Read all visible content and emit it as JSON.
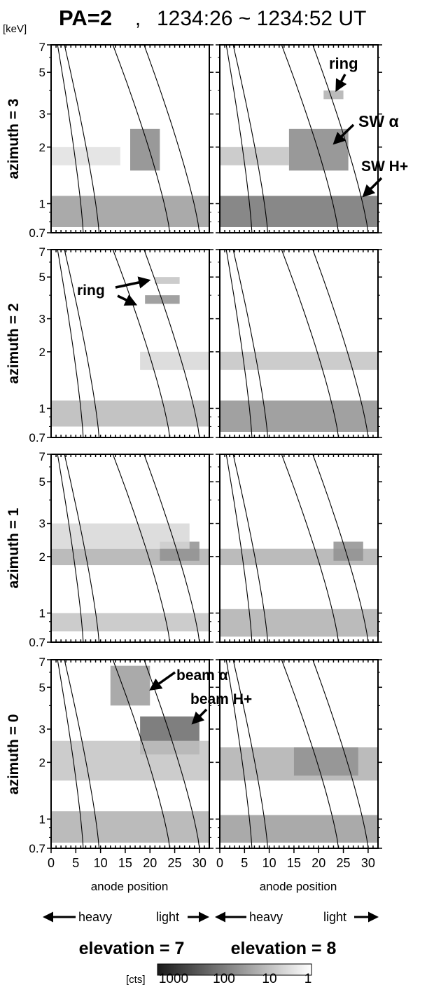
{
  "title": {
    "pa": "PA=2",
    "sep": ",",
    "time": "1234:26 ~ 1234:52 UT"
  },
  "y_unit": "[keV]",
  "y_ticks": [
    "7",
    "5",
    "3",
    "2",
    "1",
    "0.7"
  ],
  "x_ticks": [
    "0",
    "5",
    "10",
    "15",
    "20",
    "25",
    "30"
  ],
  "x_label": "anode position",
  "heavy_label": "heavy",
  "light_label": "light",
  "columns": [
    {
      "elevation_label": "elevation = 7"
    },
    {
      "elevation_label": "elevation = 8"
    }
  ],
  "rows": [
    {
      "azimuth_label": "azimuth = 3"
    },
    {
      "azimuth_label": "azimuth = 2"
    },
    {
      "azimuth_label": "azimuth = 1"
    },
    {
      "azimuth_label": "azimuth = 0"
    }
  ],
  "annotations": {
    "ring": "ring",
    "ring2": "ring",
    "sw_alpha": "SW α",
    "sw_h": "SW H+",
    "beam_alpha": "beam α",
    "beam_h": "beam H+"
  },
  "colorbar": {
    "unit": "[cts]",
    "ticks": [
      "1000",
      "100",
      "10",
      "1"
    ],
    "colors": {
      "high": "#1a1a1a",
      "low": "#ffffff"
    }
  },
  "chart_data": {
    "type": "heatmap",
    "x_axis": {
      "label": "anode position",
      "range": [
        0,
        32
      ]
    },
    "y_axis": {
      "unit": "keV",
      "scale": "log",
      "range": [
        0.7,
        7
      ]
    },
    "color_scale": {
      "unit": "cts",
      "scale": "log",
      "range": [
        1,
        1000
      ]
    },
    "panels": [
      {
        "azimuth": 3,
        "elevation": 7,
        "features": [
          {
            "x": [
              0,
              32
            ],
            "y": [
              0.75,
              1.1
            ],
            "level": 0.5
          },
          {
            "x": [
              16,
              22
            ],
            "y": [
              1.5,
              2.5
            ],
            "level": 0.6
          },
          {
            "x": [
              0,
              14
            ],
            "y": [
              1.6,
              2.0
            ],
            "level": 0.15
          }
        ]
      },
      {
        "azimuth": 3,
        "elevation": 8,
        "features": [
          {
            "x": [
              0,
              32
            ],
            "y": [
              0.75,
              1.1
            ],
            "level": 0.7
          },
          {
            "x": [
              14,
              26
            ],
            "y": [
              1.5,
              2.5
            ],
            "level": 0.6
          },
          {
            "x": [
              21,
              25
            ],
            "y": [
              3.6,
              4.0
            ],
            "level": 0.4
          },
          {
            "x": [
              0,
              14
            ],
            "y": [
              1.6,
              2.0
            ],
            "level": 0.3
          }
        ]
      },
      {
        "azimuth": 2,
        "elevation": 7,
        "features": [
          {
            "x": [
              0,
              32
            ],
            "y": [
              0.8,
              1.1
            ],
            "level": 0.35
          },
          {
            "x": [
              19,
              26
            ],
            "y": [
              3.6,
              4.0
            ],
            "level": 0.55
          },
          {
            "x": [
              21,
              26
            ],
            "y": [
              4.6,
              5.0
            ],
            "level": 0.3
          },
          {
            "x": [
              18,
              32
            ],
            "y": [
              1.6,
              2.0
            ],
            "level": 0.2
          }
        ]
      },
      {
        "azimuth": 2,
        "elevation": 8,
        "features": [
          {
            "x": [
              0,
              32
            ],
            "y": [
              0.75,
              1.1
            ],
            "level": 0.55
          },
          {
            "x": [
              0,
              32
            ],
            "y": [
              1.6,
              2.0
            ],
            "level": 0.3
          }
        ]
      },
      {
        "azimuth": 1,
        "elevation": 7,
        "features": [
          {
            "x": [
              0,
              32
            ],
            "y": [
              0.8,
              1.0
            ],
            "level": 0.3
          },
          {
            "x": [
              0,
              32
            ],
            "y": [
              1.8,
              2.2
            ],
            "level": 0.4
          },
          {
            "x": [
              22,
              30
            ],
            "y": [
              1.9,
              2.4
            ],
            "level": 0.55
          },
          {
            "x": [
              0,
              28
            ],
            "y": [
              2.2,
              3.0
            ],
            "level": 0.2
          }
        ]
      },
      {
        "azimuth": 1,
        "elevation": 8,
        "features": [
          {
            "x": [
              0,
              32
            ],
            "y": [
              0.75,
              1.05
            ],
            "level": 0.4
          },
          {
            "x": [
              0,
              32
            ],
            "y": [
              1.8,
              2.2
            ],
            "level": 0.4
          },
          {
            "x": [
              23,
              29
            ],
            "y": [
              1.9,
              2.4
            ],
            "level": 0.55
          }
        ]
      },
      {
        "azimuth": 0,
        "elevation": 7,
        "features": [
          {
            "x": [
              0,
              32
            ],
            "y": [
              0.75,
              1.1
            ],
            "level": 0.4
          },
          {
            "x": [
              12,
              20
            ],
            "y": [
              4.0,
              6.5
            ],
            "level": 0.5
          },
          {
            "x": [
              18,
              30
            ],
            "y": [
              2.2,
              3.5
            ],
            "level": 0.75
          },
          {
            "x": [
              0,
              32
            ],
            "y": [
              1.6,
              2.6
            ],
            "level": 0.3
          }
        ]
      },
      {
        "azimuth": 0,
        "elevation": 8,
        "features": [
          {
            "x": [
              0,
              32
            ],
            "y": [
              0.75,
              1.05
            ],
            "level": 0.5
          },
          {
            "x": [
              0,
              32
            ],
            "y": [
              1.6,
              2.4
            ],
            "level": 0.4
          },
          {
            "x": [
              15,
              28
            ],
            "y": [
              1.7,
              2.4
            ],
            "level": 0.55
          }
        ]
      }
    ],
    "mass_per_charge_curves": [
      {
        "x_at_7keV": 1.3,
        "x_at_0.7keV": 6.5
      },
      {
        "x_at_7keV": 2.7,
        "x_at_0.7keV": 9.7
      },
      {
        "x_at_7keV": 12.5,
        "x_at_0.7keV": 24.0
      },
      {
        "x_at_7keV": 18.8,
        "x_at_0.7keV": 30.0
      }
    ]
  }
}
